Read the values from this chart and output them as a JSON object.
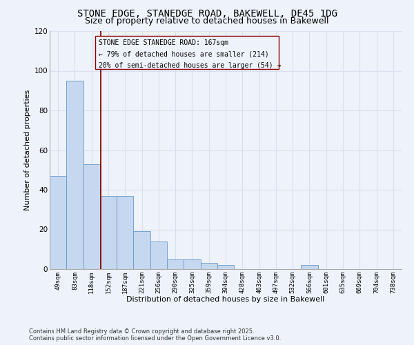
{
  "title_line1": "STONE EDGE, STANEDGE ROAD, BAKEWELL, DE45 1DG",
  "title_line2": "Size of property relative to detached houses in Bakewell",
  "xlabel": "Distribution of detached houses by size in Bakewell",
  "ylabel": "Number of detached properties",
  "categories": [
    "49sqm",
    "83sqm",
    "118sqm",
    "152sqm",
    "187sqm",
    "221sqm",
    "256sqm",
    "290sqm",
    "325sqm",
    "359sqm",
    "394sqm",
    "428sqm",
    "463sqm",
    "497sqm",
    "532sqm",
    "566sqm",
    "601sqm",
    "635sqm",
    "669sqm",
    "704sqm",
    "738sqm"
  ],
  "bar_heights": [
    47,
    95,
    53,
    37,
    37,
    19,
    14,
    5,
    5,
    3,
    2,
    0,
    0,
    0,
    0,
    2,
    0,
    0,
    0,
    0,
    0
  ],
  "bar_color": "#c5d8f0",
  "bar_edge_color": "#6699cc",
  "bar_width": 1.0,
  "ylim": [
    0,
    120
  ],
  "yticks": [
    0,
    20,
    40,
    60,
    80,
    100,
    120
  ],
  "vline_x": 2.55,
  "vline_color": "#8b0000",
  "annotation_text_line1": "STONE EDGE STANEDGE ROAD: 167sqm",
  "annotation_text_line2": "← 79% of detached houses are smaller (214)",
  "annotation_text_line3": "20% of semi-detached houses are larger (54) →",
  "footer_line1": "Contains HM Land Registry data © Crown copyright and database right 2025.",
  "footer_line2": "Contains public sector information licensed under the Open Government Licence v3.0.",
  "bg_color": "#eef2fa",
  "grid_color": "#d8e0f0",
  "title_fontsize": 10,
  "subtitle_fontsize": 9,
  "axis_label_fontsize": 8,
  "tick_fontsize": 6.5,
  "annotation_fontsize": 7,
  "footer_fontsize": 6
}
